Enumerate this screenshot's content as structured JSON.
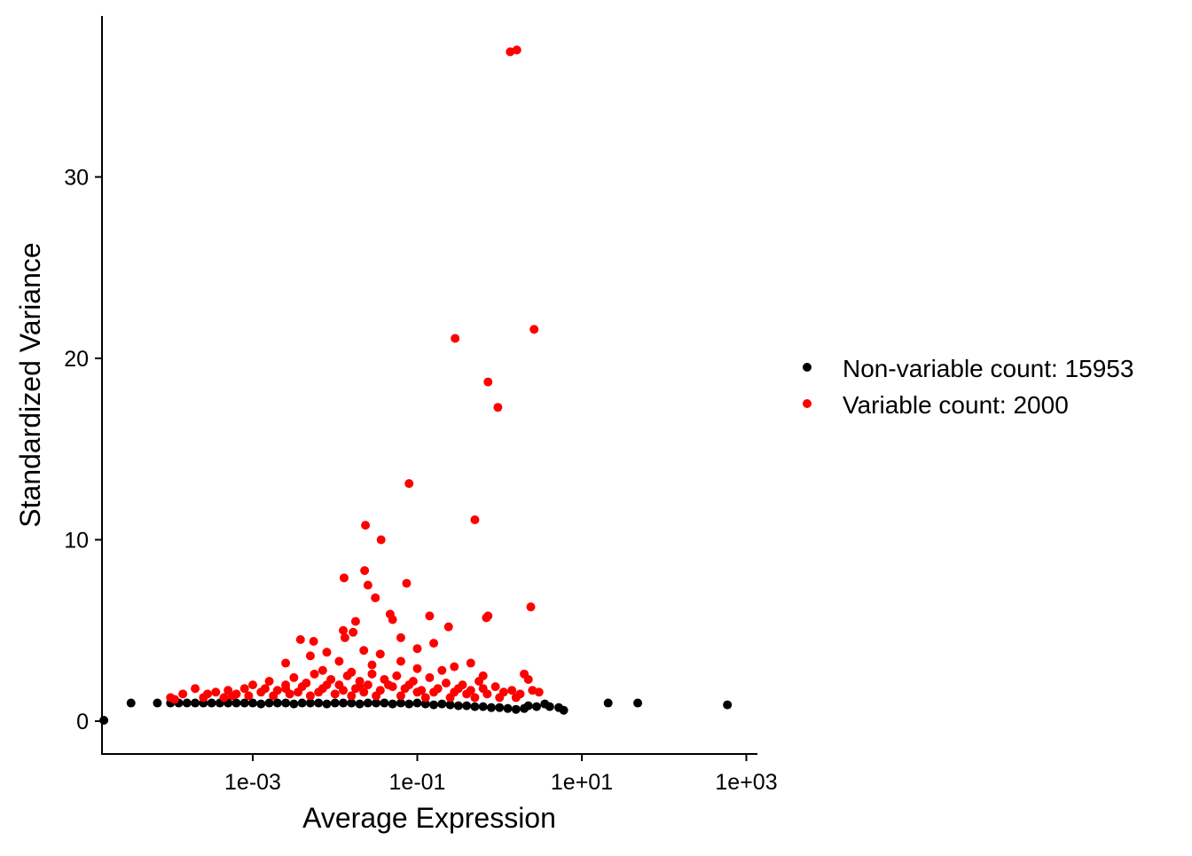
{
  "chart_data": {
    "type": "scatter",
    "title": "",
    "xlabel": "Average Expression",
    "ylabel": "Standardized Variance",
    "x_scale": "log10",
    "xlim_log10": [
      -4.84,
      3.14
    ],
    "ylim": [
      -1.8,
      39
    ],
    "x_ticks": [
      {
        "log10": -3,
        "label": "1e-03"
      },
      {
        "log10": -1,
        "label": "1e-01"
      },
      {
        "log10": 1,
        "label": "1e+01"
      },
      {
        "log10": 3,
        "label": "1e+03"
      }
    ],
    "y_ticks": [
      {
        "value": 0,
        "label": "0"
      },
      {
        "value": 10,
        "label": "10"
      },
      {
        "value": 20,
        "label": "20"
      },
      {
        "value": 30,
        "label": "30"
      }
    ],
    "grid": false,
    "legend_placement": "right",
    "series": [
      {
        "name": "Non-variable count: 15953",
        "color": "#000000",
        "points_log10x_y": [
          [
            -4.81,
            0.05
          ],
          [
            -4.48,
            1.0
          ],
          [
            -4.16,
            1.0
          ],
          [
            -4.0,
            1.0
          ],
          [
            -3.9,
            1.0
          ],
          [
            -3.8,
            1.0
          ],
          [
            -3.7,
            1.0
          ],
          [
            -3.6,
            1.0
          ],
          [
            -3.5,
            1.0
          ],
          [
            -3.4,
            1.0
          ],
          [
            -3.3,
            1.0
          ],
          [
            -3.2,
            1.0
          ],
          [
            -3.1,
            1.0
          ],
          [
            -3.0,
            1.0
          ],
          [
            -2.9,
            0.95
          ],
          [
            -2.8,
            1.0
          ],
          [
            -2.7,
            1.0
          ],
          [
            -2.6,
            1.0
          ],
          [
            -2.5,
            0.95
          ],
          [
            -2.4,
            1.0
          ],
          [
            -2.3,
            1.0
          ],
          [
            -2.2,
            1.0
          ],
          [
            -2.1,
            0.95
          ],
          [
            -2.0,
            1.0
          ],
          [
            -1.9,
            1.0
          ],
          [
            -1.8,
            1.0
          ],
          [
            -1.7,
            0.95
          ],
          [
            -1.6,
            1.0
          ],
          [
            -1.5,
            1.0
          ],
          [
            -1.4,
            1.0
          ],
          [
            -1.3,
            0.95
          ],
          [
            -1.2,
            1.0
          ],
          [
            -1.1,
            0.95
          ],
          [
            -1.0,
            1.0
          ],
          [
            -0.9,
            0.95
          ],
          [
            -0.8,
            0.9
          ],
          [
            -0.7,
            0.95
          ],
          [
            -0.6,
            0.9
          ],
          [
            -0.5,
            0.85
          ],
          [
            -0.4,
            0.85
          ],
          [
            -0.3,
            0.8
          ],
          [
            -0.2,
            0.8
          ],
          [
            -0.1,
            0.75
          ],
          [
            0.0,
            0.75
          ],
          [
            0.1,
            0.7
          ],
          [
            0.2,
            0.65
          ],
          [
            0.3,
            0.7
          ],
          [
            0.35,
            0.85
          ],
          [
            0.45,
            0.8
          ],
          [
            0.55,
            0.95
          ],
          [
            0.61,
            0.8
          ],
          [
            0.72,
            0.75
          ],
          [
            0.78,
            0.6
          ],
          [
            1.32,
            1.0
          ],
          [
            1.68,
            1.0
          ],
          [
            2.77,
            0.9
          ]
        ]
      },
      {
        "name": "Variable count: 2000",
        "color": "#ff0000",
        "points_log10x_y": [
          [
            0.13,
            36.9
          ],
          [
            0.21,
            37.0
          ],
          [
            0.42,
            21.6
          ],
          [
            -0.54,
            21.1
          ],
          [
            -0.14,
            18.7
          ],
          [
            -0.02,
            17.3
          ],
          [
            -1.1,
            13.1
          ],
          [
            -0.3,
            11.1
          ],
          [
            -1.63,
            10.8
          ],
          [
            -1.44,
            10.0
          ],
          [
            -1.64,
            8.3
          ],
          [
            -1.89,
            7.9
          ],
          [
            -1.6,
            7.5
          ],
          [
            -1.13,
            7.6
          ],
          [
            -1.51,
            6.8
          ],
          [
            0.38,
            6.3
          ],
          [
            -0.16,
            5.7
          ],
          [
            -0.14,
            5.8
          ],
          [
            -0.85,
            5.8
          ],
          [
            -1.33,
            5.9
          ],
          [
            -1.3,
            5.6
          ],
          [
            -0.62,
            5.2
          ],
          [
            -1.75,
            5.5
          ],
          [
            -1.9,
            5.0
          ],
          [
            -1.88,
            4.6
          ],
          [
            -2.42,
            4.5
          ],
          [
            -2.26,
            4.4
          ],
          [
            -1.78,
            4.9
          ],
          [
            -1.2,
            4.6
          ],
          [
            -0.8,
            4.3
          ],
          [
            -1.0,
            4.0
          ],
          [
            -1.65,
            3.9
          ],
          [
            -2.1,
            3.8
          ],
          [
            -2.3,
            3.6
          ],
          [
            -1.45,
            3.7
          ],
          [
            -0.35,
            3.2
          ],
          [
            -1.95,
            3.3
          ],
          [
            -2.6,
            3.2
          ],
          [
            -1.2,
            3.3
          ],
          [
            -0.55,
            3.0
          ],
          [
            -1.55,
            3.1
          ],
          [
            -1.0,
            2.9
          ],
          [
            0.3,
            2.6
          ],
          [
            0.35,
            2.3
          ],
          [
            -2.15,
            2.8
          ],
          [
            -1.8,
            2.7
          ],
          [
            -0.7,
            2.8
          ],
          [
            -0.2,
            2.5
          ],
          [
            -4.0,
            1.3
          ],
          [
            -3.85,
            1.5
          ],
          [
            -3.7,
            1.8
          ],
          [
            -3.55,
            1.5
          ],
          [
            -3.45,
            1.6
          ],
          [
            -3.3,
            1.7
          ],
          [
            -3.2,
            1.5
          ],
          [
            -3.1,
            1.8
          ],
          [
            -3.0,
            2.0
          ],
          [
            -2.9,
            1.6
          ],
          [
            -2.8,
            2.2
          ],
          [
            -2.7,
            1.7
          ],
          [
            -2.6,
            2.0
          ],
          [
            -2.5,
            2.4
          ],
          [
            -2.45,
            1.6
          ],
          [
            -2.35,
            2.1
          ],
          [
            -2.25,
            2.6
          ],
          [
            -2.15,
            1.8
          ],
          [
            -2.05,
            2.3
          ],
          [
            -1.95,
            2.0
          ],
          [
            -1.85,
            2.5
          ],
          [
            -1.75,
            1.8
          ],
          [
            -1.7,
            2.2
          ],
          [
            -1.6,
            2.0
          ],
          [
            -1.55,
            2.6
          ],
          [
            -1.45,
            1.7
          ],
          [
            -1.4,
            2.3
          ],
          [
            -1.3,
            1.9
          ],
          [
            -1.25,
            2.5
          ],
          [
            -1.15,
            1.8
          ],
          [
            -1.05,
            2.2
          ],
          [
            -0.95,
            1.7
          ],
          [
            -0.85,
            2.4
          ],
          [
            -0.75,
            1.8
          ],
          [
            -0.65,
            2.1
          ],
          [
            -0.55,
            1.6
          ],
          [
            -0.45,
            2.0
          ],
          [
            -0.35,
            1.7
          ],
          [
            -0.25,
            2.2
          ],
          [
            -0.15,
            1.5
          ],
          [
            -0.05,
            1.9
          ],
          [
            0.05,
            1.6
          ],
          [
            0.15,
            1.7
          ],
          [
            0.25,
            1.5
          ],
          [
            0.4,
            1.7
          ],
          [
            0.48,
            1.6
          ],
          [
            -3.95,
            1.2
          ],
          [
            -3.6,
            1.3
          ],
          [
            -3.35,
            1.3
          ],
          [
            -3.05,
            1.4
          ],
          [
            -2.75,
            1.4
          ],
          [
            -2.55,
            1.5
          ],
          [
            -2.3,
            1.4
          ],
          [
            -2.0,
            1.5
          ],
          [
            -1.8,
            1.4
          ],
          [
            -1.5,
            1.4
          ],
          [
            -1.2,
            1.4
          ],
          [
            -0.9,
            1.3
          ],
          [
            -0.6,
            1.3
          ],
          [
            -0.3,
            1.3
          ],
          [
            0.0,
            1.3
          ],
          [
            0.2,
            1.3
          ],
          [
            -2.85,
            1.8
          ],
          [
            -2.4,
            1.9
          ],
          [
            -2.1,
            2.0
          ],
          [
            -1.9,
            1.7
          ],
          [
            -1.65,
            1.6
          ],
          [
            -1.35,
            2.0
          ],
          [
            -1.1,
            2.0
          ],
          [
            -0.8,
            1.6
          ],
          [
            -0.5,
            1.8
          ],
          [
            -0.2,
            1.8
          ],
          [
            -2.6,
            1.8
          ],
          [
            -3.25,
            1.4
          ],
          [
            -2.2,
            1.6
          ],
          [
            -1.7,
            1.9
          ],
          [
            -1.0,
            1.6
          ],
          [
            -0.4,
            1.5
          ]
        ]
      }
    ]
  }
}
